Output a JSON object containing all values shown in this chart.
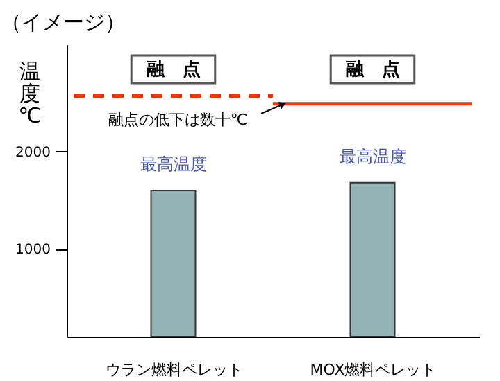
{
  "chart_data": {
    "type": "bar",
    "title": "（イメージ）",
    "ylabel": "温度℃",
    "categories": [
      "ウラン燃料ペレット",
      "MOX燃料ペレット"
    ],
    "series": [
      {
        "name": "最高温度",
        "color": "#93b3b5",
        "values": [
          1600,
          1680
        ]
      }
    ],
    "ref_lines": [
      {
        "axis": "y",
        "value": 2570,
        "label": "融　点",
        "color": "#ff3300",
        "line_style": "dashed"
      },
      {
        "axis": "y",
        "value": 2490,
        "label": "融　点",
        "color": "#ff3300",
        "line_style": "solid"
      }
    ],
    "annotations": [
      "融点の低下は数十℃"
    ],
    "ylim": [
      100,
      3100
    ],
    "yticks": [
      1000,
      2000
    ],
    "grid": false
  }
}
